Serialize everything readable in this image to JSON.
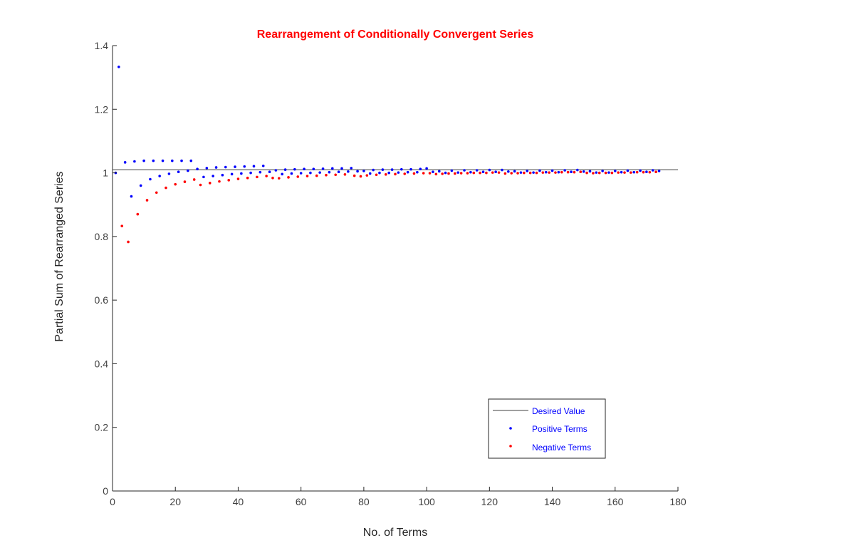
{
  "chart_data": {
    "type": "scatter",
    "title": "Rearrangement  of  Conditionally  Convergent  Series",
    "title_color": "#ff0000",
    "xlabel": "No. of Terms",
    "ylabel": "Partial Sum of Rearranged Series",
    "xlim": [
      0,
      180
    ],
    "ylim": [
      0,
      1.4
    ],
    "x_ticks": [
      0,
      20,
      40,
      60,
      80,
      100,
      120,
      140,
      160,
      180
    ],
    "x_tick_labels": [
      "0",
      "20",
      "40",
      "60",
      "80",
      "100",
      "120",
      "140",
      "160",
      "180"
    ],
    "y_ticks": [
      0,
      0.2,
      0.4,
      0.6,
      0.8,
      1.0,
      1.2,
      1.4
    ],
    "y_tick_labels": [
      "0",
      "0.2",
      "0.4",
      "0.6",
      "0.8",
      "1",
      "1.2",
      "1.4"
    ],
    "grid": false,
    "legend_position": "bottom-right",
    "legend_text_color": "#0000ff",
    "reference_line": {
      "name": "Desired Value",
      "y": 1.01,
      "x_range": [
        0,
        180
      ],
      "color": "#404040"
    },
    "series": [
      {
        "name": "Positive Terms",
        "color": "#0000ff",
        "points": [
          [
            1,
            1.0
          ],
          [
            2,
            1.333
          ],
          [
            4,
            1.033
          ],
          [
            6,
            0.926
          ],
          [
            7,
            1.036
          ],
          [
            9,
            0.96
          ],
          [
            10,
            1.038
          ],
          [
            12,
            0.98
          ],
          [
            13,
            1.038
          ],
          [
            15,
            0.99
          ],
          [
            16,
            1.038
          ],
          [
            18,
            0.997
          ],
          [
            19,
            1.038
          ],
          [
            21,
            1.003
          ],
          [
            22,
            1.038
          ],
          [
            24,
            1.007
          ],
          [
            25,
            1.038
          ],
          [
            27,
            1.012
          ],
          [
            29,
            0.987
          ],
          [
            30,
            1.015
          ],
          [
            32,
            0.99
          ],
          [
            33,
            1.017
          ],
          [
            35,
            0.993
          ],
          [
            36,
            1.018
          ],
          [
            38,
            0.996
          ],
          [
            39,
            1.019
          ],
          [
            41,
            0.998
          ],
          [
            42,
            1.02
          ],
          [
            44,
            1.0
          ],
          [
            45,
            1.021
          ],
          [
            47,
            1.002
          ],
          [
            48,
            1.022
          ],
          [
            50,
            1.003
          ],
          [
            52,
            1.008
          ],
          [
            54,
            0.996
          ],
          [
            55,
            1.01
          ],
          [
            57,
            0.998
          ],
          [
            58,
            1.011
          ],
          [
            60,
            0.999
          ],
          [
            61,
            1.012
          ],
          [
            63,
            1.0
          ],
          [
            64,
            1.012
          ],
          [
            66,
            1.001
          ],
          [
            67,
            1.013
          ],
          [
            69,
            1.002
          ],
          [
            70,
            1.014
          ],
          [
            72,
            1.003
          ],
          [
            73,
            1.014
          ],
          [
            75,
            1.004
          ],
          [
            76,
            1.015
          ],
          [
            78,
            1.005
          ],
          [
            80,
            1.006
          ],
          [
            82,
            0.998
          ],
          [
            83,
            1.009
          ],
          [
            85,
            1.0
          ],
          [
            86,
            1.01
          ],
          [
            88,
            1.0
          ],
          [
            89,
            1.01
          ],
          [
            91,
            1.001
          ],
          [
            92,
            1.011
          ],
          [
            94,
            1.002
          ],
          [
            95,
            1.011
          ],
          [
            97,
            1.002
          ],
          [
            98,
            1.012
          ],
          [
            100,
            1.014
          ],
          [
            102,
            1.003
          ],
          [
            104,
            1.005
          ],
          [
            106,
            1.0
          ],
          [
            108,
            1.007
          ],
          [
            110,
            1.001
          ],
          [
            112,
            1.008
          ],
          [
            114,
            1.002
          ],
          [
            116,
            1.008
          ],
          [
            118,
            1.003
          ],
          [
            120,
            1.009
          ],
          [
            122,
            1.003
          ],
          [
            124,
            1.009
          ],
          [
            126,
            1.004
          ],
          [
            128,
            1.005
          ],
          [
            130,
            1.001
          ],
          [
            132,
            1.006
          ],
          [
            134,
            1.001
          ],
          [
            136,
            1.007
          ],
          [
            138,
            1.002
          ],
          [
            140,
            1.007
          ],
          [
            142,
            1.002
          ],
          [
            144,
            1.008
          ],
          [
            146,
            1.003
          ],
          [
            148,
            1.009
          ],
          [
            150,
            1.004
          ],
          [
            152,
            1.005
          ],
          [
            154,
            1.001
          ],
          [
            156,
            1.006
          ],
          [
            158,
            1.001
          ],
          [
            160,
            1.006
          ],
          [
            162,
            1.002
          ],
          [
            164,
            1.007
          ],
          [
            166,
            1.002
          ],
          [
            168,
            1.007
          ],
          [
            170,
            1.003
          ],
          [
            172,
            1.008
          ],
          [
            174,
            1.006
          ]
        ]
      },
      {
        "name": "Negative Terms",
        "color": "#ff0000",
        "points": [
          [
            3,
            0.833
          ],
          [
            5,
            0.783
          ],
          [
            8,
            0.87
          ],
          [
            11,
            0.914
          ],
          [
            14,
            0.938
          ],
          [
            17,
            0.953
          ],
          [
            20,
            0.964
          ],
          [
            23,
            0.972
          ],
          [
            26,
            0.979
          ],
          [
            28,
            0.962
          ],
          [
            31,
            0.968
          ],
          [
            34,
            0.973
          ],
          [
            37,
            0.977
          ],
          [
            40,
            0.981
          ],
          [
            43,
            0.984
          ],
          [
            46,
            0.987
          ],
          [
            49,
            0.99
          ],
          [
            51,
            0.984
          ],
          [
            53,
            0.983
          ],
          [
            56,
            0.986
          ],
          [
            59,
            0.988
          ],
          [
            62,
            0.99
          ],
          [
            65,
            0.991
          ],
          [
            68,
            0.993
          ],
          [
            71,
            0.994
          ],
          [
            74,
            0.995
          ],
          [
            77,
            0.991
          ],
          [
            79,
            0.989
          ],
          [
            81,
            0.992
          ],
          [
            84,
            0.994
          ],
          [
            87,
            0.995
          ],
          [
            90,
            0.996
          ],
          [
            93,
            0.997
          ],
          [
            96,
            0.998
          ],
          [
            99,
            0.999
          ],
          [
            101,
            0.999
          ],
          [
            103,
            0.996
          ],
          [
            105,
            0.997
          ],
          [
            107,
            0.998
          ],
          [
            109,
            0.998
          ],
          [
            111,
            0.999
          ],
          [
            113,
            0.999
          ],
          [
            115,
            1.0
          ],
          [
            117,
            1.0
          ],
          [
            119,
            1.0
          ],
          [
            121,
            1.001
          ],
          [
            123,
            1.001
          ],
          [
            125,
            0.998
          ],
          [
            127,
            0.999
          ],
          [
            129,
            0.999
          ],
          [
            131,
            1.0
          ],
          [
            133,
            1.0
          ],
          [
            135,
            1.0
          ],
          [
            137,
            1.001
          ],
          [
            139,
            1.001
          ],
          [
            141,
            1.001
          ],
          [
            143,
            1.002
          ],
          [
            145,
            1.002
          ],
          [
            147,
            1.002
          ],
          [
            149,
            1.003
          ],
          [
            151,
            1.0
          ],
          [
            153,
            0.999
          ],
          [
            155,
            1.0
          ],
          [
            157,
            1.0
          ],
          [
            159,
            1.0
          ],
          [
            161,
            1.001
          ],
          [
            163,
            1.001
          ],
          [
            165,
            1.001
          ],
          [
            167,
            1.002
          ],
          [
            169,
            1.002
          ],
          [
            171,
            1.002
          ],
          [
            173,
            1.003
          ]
        ]
      }
    ]
  }
}
